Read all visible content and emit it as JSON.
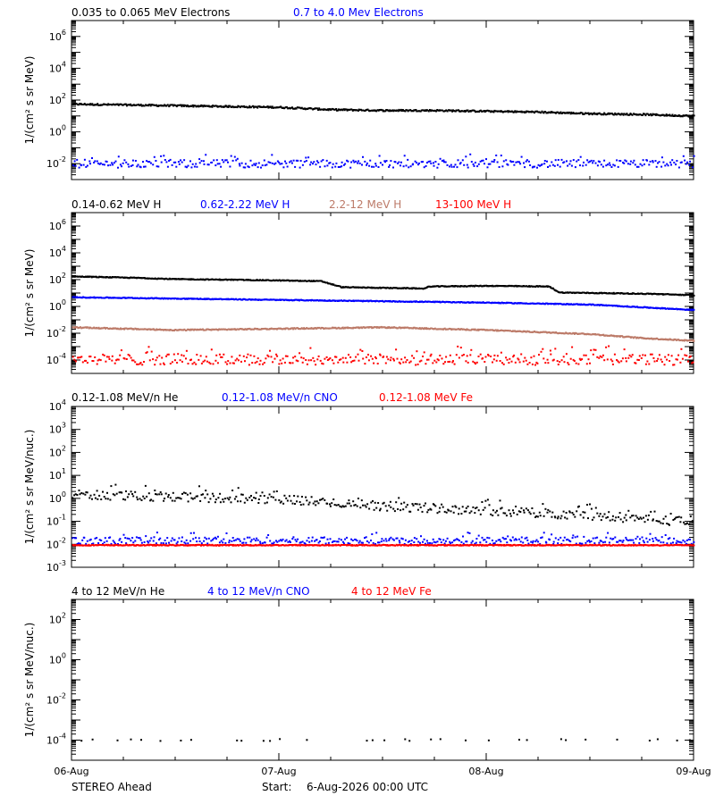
{
  "figure": {
    "mission_label": "STEREO Ahead",
    "start_prefix": "Start:",
    "start_value": "6-Aug-2026 00:00 UTC"
  },
  "chart_data": [
    {
      "type": "scatter",
      "panel": "electrons",
      "ylabel": "1/(cm² s sr MeV)",
      "yscale": "log",
      "ylim_exp": [
        -3,
        7
      ],
      "ytick_exps": [
        -2,
        0,
        2,
        4,
        6
      ],
      "xlim": [
        "2026-08-06",
        "2026-08-09"
      ],
      "x_ticks": [
        "06-Aug",
        "07-Aug",
        "08-Aug",
        "09-Aug"
      ],
      "show_x_tick_labels": false,
      "series": [
        {
          "name": "0.035 to 0.065 MeV Electrons",
          "color": "#000000",
          "x_days": [
            0,
            0.25,
            0.5,
            0.75,
            1.0,
            1.25,
            1.5,
            1.75,
            2.0,
            2.25,
            2.5,
            2.75,
            3.0
          ],
          "y_log10": [
            1.8,
            1.75,
            1.7,
            1.65,
            1.6,
            1.45,
            1.4,
            1.4,
            1.35,
            1.3,
            1.2,
            1.15,
            1.05
          ],
          "scatter": 0.05,
          "style": "dense"
        },
        {
          "name": "0.7 to 4.0 Mev Electrons",
          "color": "#0000ff",
          "x_days": [
            0,
            1.5,
            3.0
          ],
          "y_log10": [
            -1.95,
            -1.95,
            -1.95
          ],
          "scatter": 0.25,
          "style": "noisy"
        }
      ]
    },
    {
      "type": "scatter",
      "panel": "protons",
      "ylabel": "1/(cm² s sr MeV)",
      "yscale": "log",
      "ylim_exp": [
        -5,
        7
      ],
      "ytick_exps": [
        -4,
        -2,
        0,
        2,
        4,
        6
      ],
      "xlim": [
        "2026-08-06",
        "2026-08-09"
      ],
      "x_ticks": [
        "06-Aug",
        "07-Aug",
        "08-Aug",
        "09-Aug"
      ],
      "show_x_tick_labels": false,
      "series": [
        {
          "name": "0.14-0.62 MeV H",
          "color": "#000000",
          "x_days": [
            0,
            0.3,
            0.5,
            0.8,
            1.0,
            1.2,
            1.3,
            1.5,
            1.7,
            1.72,
            2.0,
            2.3,
            2.35,
            2.6,
            2.8,
            3.0
          ],
          "y_log10": [
            2.3,
            2.2,
            2.1,
            2.05,
            2.0,
            1.95,
            1.5,
            1.45,
            1.4,
            1.55,
            1.6,
            1.55,
            1.1,
            1.05,
            1.0,
            0.9
          ],
          "scatter": 0.03,
          "style": "dense"
        },
        {
          "name": "0.62-2.22 MeV H",
          "color": "#0000ff",
          "x_days": [
            0,
            0.5,
            1.0,
            1.5,
            2.0,
            2.5,
            3.0
          ],
          "y_log10": [
            0.75,
            0.65,
            0.55,
            0.45,
            0.35,
            0.2,
            -0.2
          ],
          "scatter": 0.03,
          "style": "dense"
        },
        {
          "name": "2.2-12 MeV H",
          "color": "#bc7a68",
          "x_days": [
            0,
            0.5,
            1.0,
            1.5,
            2.0,
            2.5,
            2.75,
            3.0
          ],
          "y_log10": [
            -1.5,
            -1.7,
            -1.6,
            -1.5,
            -1.7,
            -2.0,
            -2.3,
            -2.5
          ],
          "scatter": 0.04,
          "style": "dense"
        },
        {
          "name": "13-100 MeV H",
          "color": "#ff0000",
          "x_days": [
            0,
            3.0
          ],
          "y_log10": [
            -3.9,
            -3.9
          ],
          "scatter": 0.4,
          "style": "noisy"
        }
      ]
    },
    {
      "type": "scatter",
      "panel": "heavy_low",
      "ylabel": "1/(cm² s sr MeV/nuc.)",
      "yscale": "log",
      "ylim_exp": [
        -3,
        4
      ],
      "ytick_exps": [
        -3,
        -2,
        -1,
        0,
        1,
        2,
        3,
        4
      ],
      "xlim": [
        "2026-08-06",
        "2026-08-09"
      ],
      "x_ticks": [
        "06-Aug",
        "07-Aug",
        "08-Aug",
        "09-Aug"
      ],
      "show_x_tick_labels": false,
      "series": [
        {
          "name": "0.12-1.08 MeV/n He",
          "color": "#000000",
          "x_days": [
            0,
            0.5,
            1.0,
            1.5,
            2.0,
            2.5,
            3.0
          ],
          "y_log10": [
            0.2,
            0.1,
            0.0,
            -0.3,
            -0.5,
            -0.7,
            -1.0
          ],
          "scatter": 0.2,
          "style": "noisy"
        },
        {
          "name": "0.12-1.08 MeV/n CNO",
          "color": "#0000ff",
          "x_days": [
            0,
            3.0
          ],
          "y_log10": [
            -1.8,
            -1.8
          ],
          "scatter": 0.15,
          "style": "noisy"
        },
        {
          "name": "0.12-1.08 MeV Fe",
          "color": "#ff0000",
          "x_days": [
            0,
            3.0
          ],
          "y_log10": [
            -2.0,
            -2.0
          ],
          "scatter": 0.02,
          "style": "dense"
        }
      ]
    },
    {
      "type": "scatter",
      "panel": "heavy_high",
      "ylabel": "1/(cm² s sr MeV/nuc.)",
      "yscale": "log",
      "ylim_exp": [
        -5,
        3
      ],
      "ytick_exps": [
        -4,
        -2,
        0,
        2
      ],
      "xlim": [
        "2026-08-06",
        "2026-08-09"
      ],
      "x_ticks": [
        "06-Aug",
        "07-Aug",
        "08-Aug",
        "09-Aug"
      ],
      "show_x_tick_labels": true,
      "series": [
        {
          "name": "4 to 12 MeV/n He",
          "color": "#000000",
          "x_days": [
            0,
            3.0
          ],
          "y_log10": [
            -3.95,
            -3.95
          ],
          "scatter": 0.05,
          "style": "sparse"
        },
        {
          "name": "4 to 12 MeV/n CNO",
          "color": "#0000ff",
          "x_days": [],
          "y_log10": [],
          "scatter": 0,
          "style": "none"
        },
        {
          "name": "4 to 12 MeV Fe",
          "color": "#ff0000",
          "x_days": [],
          "y_log10": [],
          "scatter": 0,
          "style": "none"
        }
      ]
    }
  ]
}
